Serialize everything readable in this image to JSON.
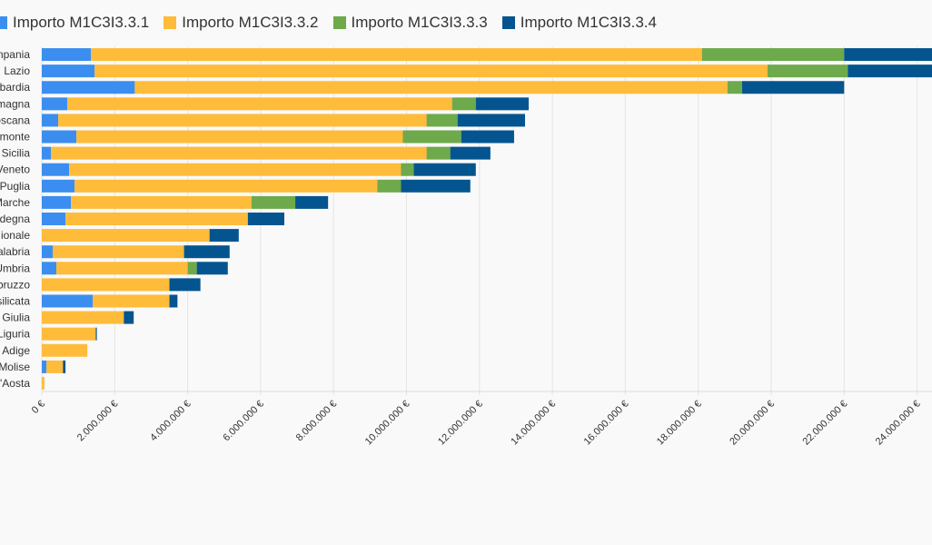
{
  "chart_data": {
    "type": "bar",
    "orientation": "horizontal",
    "stacked": true,
    "categories": [
      "Campania",
      "Lazio",
      "Lombardia",
      "Emilia-Romagna",
      "Toscana",
      "Piemonte",
      "Sicilia",
      "Veneto",
      "Puglia",
      "Marche",
      "Sardegna",
      "Nazionale",
      "Calabria",
      "Umbria",
      "Abruzzo",
      "Basilicata",
      "Friuli-Venezia Giulia",
      "Liguria",
      "Trentino-Alto Adige",
      "Molise",
      "Valle d'Aosta"
    ],
    "displayed_category_labels": [
      "mpania",
      "Lazio",
      "bardia",
      "magna",
      "oscana",
      "monte",
      "Sicilia",
      "Veneto",
      "Puglia",
      "Marche",
      "degna",
      "ionale",
      "alabria",
      "Umbria",
      "bruzzo",
      "silicata",
      "Giulia",
      "Liguria",
      "Adige",
      "Molise",
      "'Aosta"
    ],
    "series": [
      {
        "name": "Importo M1C3I3.3.1",
        "color": "#3b8ef0",
        "values": [
          1350000,
          1450000,
          2550000,
          700000,
          450000,
          950000,
          250000,
          750000,
          900000,
          800000,
          650000,
          0,
          300000,
          400000,
          0,
          1400000,
          0,
          0,
          0,
          130000,
          0
        ]
      },
      {
        "name": "Importo M1C3I3.3.2",
        "color": "#ffbb3a",
        "values": [
          16750000,
          18450000,
          16250000,
          10550000,
          10100000,
          8950000,
          10300000,
          9100000,
          8300000,
          4950000,
          5000000,
          4600000,
          3600000,
          3600000,
          3500000,
          2100000,
          2250000,
          1480000,
          1250000,
          450000,
          70000
        ]
      },
      {
        "name": "Importo M1C3I3.3.3",
        "color": "#6ea94b",
        "values": [
          3900000,
          2200000,
          400000,
          650000,
          850000,
          1600000,
          650000,
          350000,
          650000,
          1200000,
          0,
          0,
          0,
          250000,
          0,
          0,
          0,
          0,
          0,
          0,
          0
        ]
      },
      {
        "name": "Importo M1C3I3.3.4",
        "color": "#04558f",
        "values": [
          2700000,
          2400000,
          2800000,
          1450000,
          1850000,
          1450000,
          1100000,
          1700000,
          1900000,
          900000,
          1000000,
          800000,
          1250000,
          850000,
          850000,
          220000,
          270000,
          30000,
          0,
          70000,
          0
        ]
      }
    ],
    "x_ticks": [
      "0 €",
      "2.000.000 €",
      "4.000.000 €",
      "6.000.000 €",
      "8.000.000 €",
      "10.000.000 €",
      "12.000.000 €",
      "14.000.000 €",
      "16.000.000 €",
      "18.000.000 €",
      "20.000.000 €",
      "22.000.000 €",
      "24.000.000 €"
    ],
    "x_tick_values": [
      0,
      2000000,
      4000000,
      6000000,
      8000000,
      10000000,
      12000000,
      14000000,
      16000000,
      18000000,
      20000000,
      22000000,
      24000000
    ],
    "xlim": [
      0,
      24500000
    ],
    "grid": true,
    "legend_position": "top",
    "title": "",
    "xlabel": "",
    "ylabel": ""
  }
}
